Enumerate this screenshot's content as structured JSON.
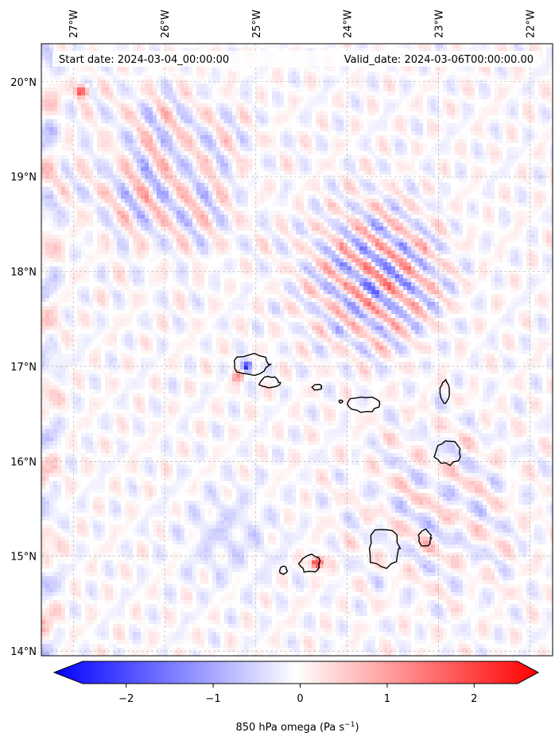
{
  "header": {
    "start_label": "Start date: 2024-03-04_00:00:00",
    "valid_label": "Valid_date: 2024-03-06T00:00:00.00"
  },
  "map": {
    "projection": "plate carree",
    "lon_range": [
      -27.35,
      -21.75
    ],
    "lat_range": [
      13.95,
      20.4
    ],
    "gridlines": true,
    "lon_ticks": [
      {
        "value": -27,
        "label": "27°W"
      },
      {
        "value": -26,
        "label": "26°W"
      },
      {
        "value": -25,
        "label": "25°W"
      },
      {
        "value": -24,
        "label": "24°W"
      },
      {
        "value": -23,
        "label": "23°W"
      },
      {
        "value": -22,
        "label": "22°W"
      }
    ],
    "lat_ticks": [
      {
        "value": 20,
        "label": "20°N"
      },
      {
        "value": 19,
        "label": "19°N"
      },
      {
        "value": 18,
        "label": "18°N"
      },
      {
        "value": 17,
        "label": "17°N"
      },
      {
        "value": 16,
        "label": "16°N"
      },
      {
        "value": 15,
        "label": "15°N"
      },
      {
        "value": 14,
        "label": "14°N"
      }
    ],
    "coastline_color": "#000000",
    "islands": [
      {
        "lon": -25.05,
        "lat": 17.02,
        "rx": 0.19,
        "ry": 0.11
      },
      {
        "lon": -24.85,
        "lat": 16.83,
        "rx": 0.11,
        "ry": 0.06
      },
      {
        "lon": -24.33,
        "lat": 16.78,
        "rx": 0.05,
        "ry": 0.03
      },
      {
        "lon": -24.07,
        "lat": 16.63,
        "rx": 0.02,
        "ry": 0.015
      },
      {
        "lon": -23.82,
        "lat": 16.6,
        "rx": 0.17,
        "ry": 0.08
      },
      {
        "lon": -22.93,
        "lat": 16.73,
        "rx": 0.05,
        "ry": 0.12
      },
      {
        "lon": -22.9,
        "lat": 16.09,
        "rx": 0.14,
        "ry": 0.12
      },
      {
        "lon": -23.6,
        "lat": 15.08,
        "rx": 0.17,
        "ry": 0.2
      },
      {
        "lon": -23.15,
        "lat": 15.19,
        "rx": 0.07,
        "ry": 0.09
      },
      {
        "lon": -24.41,
        "lat": 14.92,
        "rx": 0.11,
        "ry": 0.09
      },
      {
        "lon": -24.7,
        "lat": 14.85,
        "rx": 0.04,
        "ry": 0.04
      }
    ]
  },
  "chart_data": {
    "type": "heatmap",
    "variable_label": "850 hPa omega (Pa s",
    "variable_unit_exponent": "−1",
    "variable_label_tail": ")",
    "colormap": "bwr",
    "colors": {
      "negative": "#0000ff",
      "zero": "#ffffff",
      "positive": "#ff0000"
    },
    "vmin": -2.5,
    "vmax": 2.5,
    "extend": "both",
    "colorbar_ticks": [
      {
        "value": -2,
        "label": "−2"
      },
      {
        "value": -1,
        "label": "−1"
      },
      {
        "value": 0,
        "label": "0"
      },
      {
        "value": 1,
        "label": "1"
      },
      {
        "value": 2,
        "label": "2"
      }
    ],
    "features": [
      {
        "description": "NW-SE banded waves",
        "lon": [
          -24.3,
          -23.0
        ],
        "lat": [
          17.0,
          18.7
        ],
        "amplitude": 1.3
      },
      {
        "description": "strong positive spot",
        "lon": -26.9,
        "lat": 19.9,
        "value": 2.2
      },
      {
        "description": "strong positive spot",
        "lon": -24.33,
        "lat": 14.93,
        "value": 2.4
      },
      {
        "description": "strong negative spot",
        "lon": -25.1,
        "lat": 17.0,
        "value": -2.0
      },
      {
        "description": "positive streak",
        "lon": -25.2,
        "lat": 16.9,
        "value": 1.2
      },
      {
        "description": "positive banding",
        "lon": [
          -26.9,
          -25.5
        ],
        "lat": [
          18.2,
          19.8
        ],
        "amplitude": 0.8
      },
      {
        "description": "weak negative patch",
        "lon": [
          -25.8,
          -24.8
        ],
        "lat": [
          14.6,
          15.8
        ],
        "value": -0.3
      }
    ]
  }
}
